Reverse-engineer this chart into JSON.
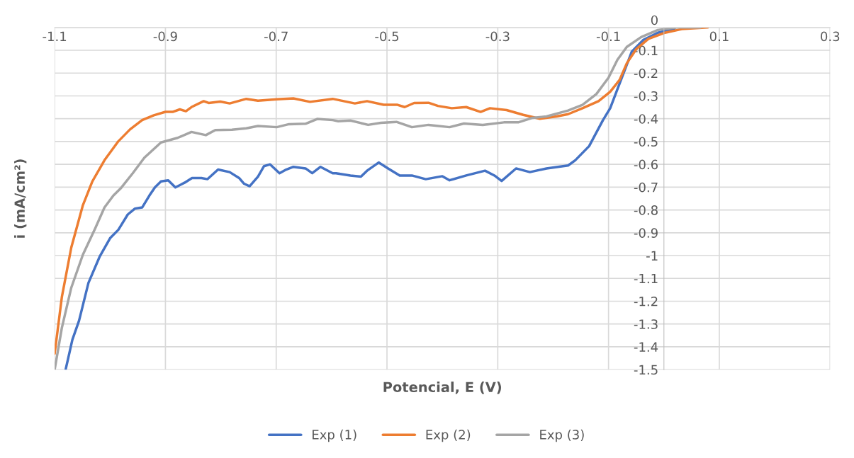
{
  "chart_data": {
    "type": "line",
    "xlabel": "Potencial, E (V)",
    "ylabel": "i (mA/cm²)",
    "xlim": [
      -1.1,
      0.3
    ],
    "xticks": [
      -1.1,
      -0.9,
      -0.7,
      -0.5,
      -0.3,
      -0.1,
      0.1,
      0.3
    ],
    "ylim": [
      -1.5,
      0
    ],
    "yticks": [
      0,
      -0.1,
      -0.2,
      -0.3,
      -0.4,
      -0.5,
      -0.6,
      -0.7,
      -0.8,
      -0.9,
      -1,
      -1.1,
      -1.2,
      -1.3,
      -1.4,
      -1.5
    ],
    "grid": true,
    "legend": "bottom",
    "marker": "none",
    "line_style": "solid",
    "series": [
      {
        "name": "Exp (1)",
        "color": "#4472c4",
        "x": [
          -1.08,
          -1.068,
          -1.056,
          -1.039,
          -1.019,
          -1.0,
          -0.985,
          -0.968,
          -0.955,
          -0.942,
          -0.929,
          -0.919,
          -0.908,
          -0.895,
          -0.882,
          -0.865,
          -0.852,
          -0.835,
          -0.824,
          -0.805,
          -0.784,
          -0.767,
          -0.758,
          -0.748,
          -0.733,
          -0.722,
          -0.711,
          -0.694,
          -0.682,
          -0.669,
          -0.647,
          -0.635,
          -0.62,
          -0.598,
          -0.592,
          -0.566,
          -0.547,
          -0.536,
          -0.515,
          -0.498,
          -0.477,
          -0.455,
          -0.43,
          -0.4,
          -0.387,
          -0.357,
          -0.323,
          -0.306,
          -0.293,
          -0.267,
          -0.242,
          -0.212,
          -0.173,
          -0.16,
          -0.135,
          -0.11,
          -0.097,
          -0.084,
          -0.071,
          -0.058,
          -0.037,
          -0.011,
          0.019
        ],
        "values": [
          -1.498,
          -1.369,
          -1.286,
          -1.12,
          -1.006,
          -0.924,
          -0.887,
          -0.82,
          -0.794,
          -0.789,
          -0.737,
          -0.701,
          -0.675,
          -0.67,
          -0.701,
          -0.68,
          -0.66,
          -0.66,
          -0.665,
          -0.623,
          -0.634,
          -0.66,
          -0.685,
          -0.696,
          -0.654,
          -0.608,
          -0.6,
          -0.639,
          -0.623,
          -0.611,
          -0.618,
          -0.639,
          -0.611,
          -0.639,
          -0.639,
          -0.649,
          -0.654,
          -0.628,
          -0.592,
          -0.618,
          -0.649,
          -0.649,
          -0.665,
          -0.652,
          -0.67,
          -0.649,
          -0.628,
          -0.649,
          -0.673,
          -0.618,
          -0.634,
          -0.618,
          -0.605,
          -0.582,
          -0.52,
          -0.406,
          -0.354,
          -0.271,
          -0.189,
          -0.106,
          -0.054,
          -0.023,
          -0.005
        ]
      },
      {
        "name": "Exp (2)",
        "color": "#ed7d31",
        "x": [
          -1.1,
          -1.087,
          -1.07,
          -1.049,
          -1.032,
          -1.01,
          -0.985,
          -0.964,
          -0.942,
          -0.921,
          -0.9,
          -0.887,
          -0.874,
          -0.863,
          -0.853,
          -0.831,
          -0.822,
          -0.801,
          -0.784,
          -0.754,
          -0.733,
          -0.699,
          -0.669,
          -0.639,
          -0.598,
          -0.558,
          -0.536,
          -0.506,
          -0.481,
          -0.468,
          -0.451,
          -0.425,
          -0.408,
          -0.383,
          -0.357,
          -0.331,
          -0.314,
          -0.284,
          -0.254,
          -0.224,
          -0.194,
          -0.173,
          -0.147,
          -0.118,
          -0.097,
          -0.08,
          -0.067,
          -0.05,
          -0.028,
          0.002,
          0.032,
          0.079
        ],
        "values": [
          -1.43,
          -1.182,
          -0.965,
          -0.779,
          -0.675,
          -0.582,
          -0.499,
          -0.447,
          -0.406,
          -0.385,
          -0.37,
          -0.37,
          -0.359,
          -0.367,
          -0.349,
          -0.323,
          -0.331,
          -0.325,
          -0.333,
          -0.313,
          -0.321,
          -0.315,
          -0.311,
          -0.326,
          -0.313,
          -0.333,
          -0.323,
          -0.339,
          -0.339,
          -0.349,
          -0.331,
          -0.33,
          -0.344,
          -0.354,
          -0.349,
          -0.37,
          -0.354,
          -0.362,
          -0.383,
          -0.4,
          -0.39,
          -0.38,
          -0.354,
          -0.323,
          -0.282,
          -0.23,
          -0.157,
          -0.095,
          -0.05,
          -0.023,
          -0.007,
          0
        ]
      },
      {
        "name": "Exp (3)",
        "color": "#a5a5a5",
        "x": [
          -1.1,
          -1.087,
          -1.07,
          -1.049,
          -1.027,
          -1.01,
          -0.994,
          -0.981,
          -0.959,
          -0.938,
          -0.908,
          -0.878,
          -0.853,
          -0.827,
          -0.81,
          -0.78,
          -0.754,
          -0.733,
          -0.699,
          -0.677,
          -0.647,
          -0.626,
          -0.598,
          -0.588,
          -0.566,
          -0.534,
          -0.511,
          -0.483,
          -0.455,
          -0.425,
          -0.387,
          -0.361,
          -0.327,
          -0.289,
          -0.263,
          -0.237,
          -0.212,
          -0.173,
          -0.147,
          -0.122,
          -0.1,
          -0.084,
          -0.067,
          -0.041,
          -0.011,
          0.023,
          0.066
        ],
        "values": [
          -1.5,
          -1.317,
          -1.141,
          -0.996,
          -0.882,
          -0.789,
          -0.737,
          -0.706,
          -0.639,
          -0.571,
          -0.504,
          -0.484,
          -0.458,
          -0.472,
          -0.45,
          -0.448,
          -0.442,
          -0.432,
          -0.437,
          -0.424,
          -0.422,
          -0.401,
          -0.406,
          -0.411,
          -0.408,
          -0.427,
          -0.418,
          -0.414,
          -0.437,
          -0.427,
          -0.437,
          -0.421,
          -0.427,
          -0.416,
          -0.416,
          -0.396,
          -0.39,
          -0.364,
          -0.339,
          -0.292,
          -0.22,
          -0.142,
          -0.085,
          -0.042,
          -0.011,
          0,
          0
        ]
      }
    ]
  }
}
